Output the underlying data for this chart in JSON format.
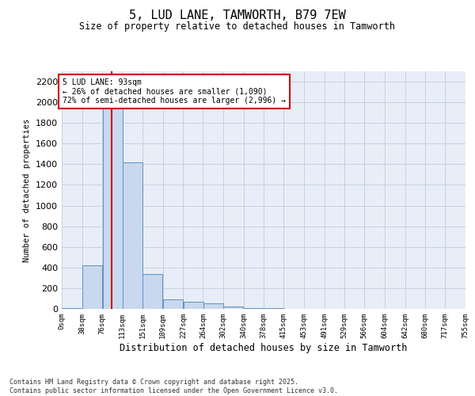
{
  "title": "5, LUD LANE, TAMWORTH, B79 7EW",
  "subtitle": "Size of property relative to detached houses in Tamworth",
  "xlabel": "Distribution of detached houses by size in Tamworth",
  "ylabel": "Number of detached properties",
  "bar_color": "#c8d8ee",
  "bar_edge_color": "#6090c0",
  "grid_color": "#c0ccd8",
  "background_color": "#e8eef8",
  "bins": [
    0,
    38,
    76,
    113,
    151,
    189,
    227,
    264,
    302,
    340,
    378,
    415,
    453,
    491,
    529,
    566,
    604,
    642,
    680,
    717,
    755
  ],
  "bin_labels": [
    "0sqm",
    "38sqm",
    "76sqm",
    "113sqm",
    "151sqm",
    "189sqm",
    "227sqm",
    "264sqm",
    "302sqm",
    "340sqm",
    "378sqm",
    "415sqm",
    "453sqm",
    "491sqm",
    "529sqm",
    "566sqm",
    "604sqm",
    "642sqm",
    "680sqm",
    "717sqm",
    "755sqm"
  ],
  "values": [
    10,
    420,
    2150,
    1420,
    340,
    90,
    70,
    50,
    25,
    10,
    5,
    2,
    1,
    1,
    0,
    0,
    0,
    0,
    0,
    0
  ],
  "vline_x": 93,
  "vline_color": "#cc0000",
  "annotation_text": "5 LUD LANE: 93sqm\n← 26% of detached houses are smaller (1,090)\n72% of semi-detached houses are larger (2,996) →",
  "annotation_box_color": "#ffffff",
  "annotation_box_edge": "#cc0000",
  "ylim": [
    0,
    2300
  ],
  "yticks": [
    0,
    200,
    400,
    600,
    800,
    1000,
    1200,
    1400,
    1600,
    1800,
    2000,
    2200
  ],
  "footer": "Contains HM Land Registry data © Crown copyright and database right 2025.\nContains public sector information licensed under the Open Government Licence v3.0."
}
